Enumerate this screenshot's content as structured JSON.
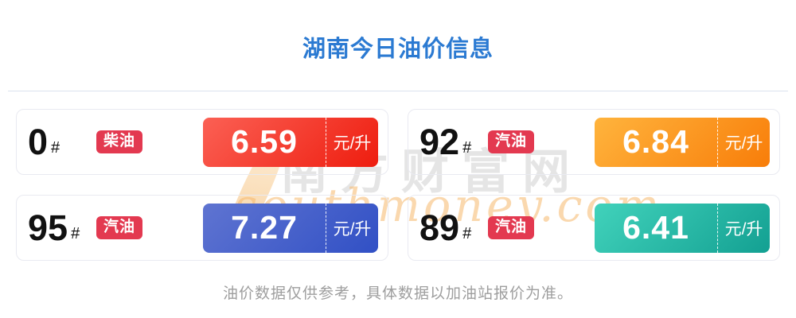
{
  "header": {
    "title": "湖南今日油价信息"
  },
  "cards": [
    {
      "grade": "0",
      "hash": "#",
      "type": "柴油",
      "price": "6.59",
      "unit": "元/升",
      "color_from": "#fb6054",
      "color_to": "#ee1d0f"
    },
    {
      "grade": "92",
      "hash": "#",
      "type": "汽油",
      "price": "6.84",
      "unit": "元/升",
      "color_from": "#ffb43d",
      "color_to": "#f87d09"
    },
    {
      "grade": "95",
      "hash": "#",
      "type": "汽油",
      "price": "7.27",
      "unit": "元/升",
      "color_from": "#5f74d1",
      "color_to": "#3150c5"
    },
    {
      "grade": "89",
      "hash": "#",
      "type": "汽油",
      "price": "6.41",
      "unit": "元/升",
      "color_from": "#41d2bb",
      "color_to": "#13a092"
    }
  ],
  "watermark": {
    "cn": "南方财富网",
    "site": "southmoney.com"
  },
  "footer": {
    "disclaimer": "油价数据仅供参考，具体数据以加油站报价为准。"
  },
  "colors": {
    "title": "#2b7ad2",
    "badge": "#e33950",
    "divider": "#dbe2ee",
    "footer_text": "#9e9e9e"
  }
}
